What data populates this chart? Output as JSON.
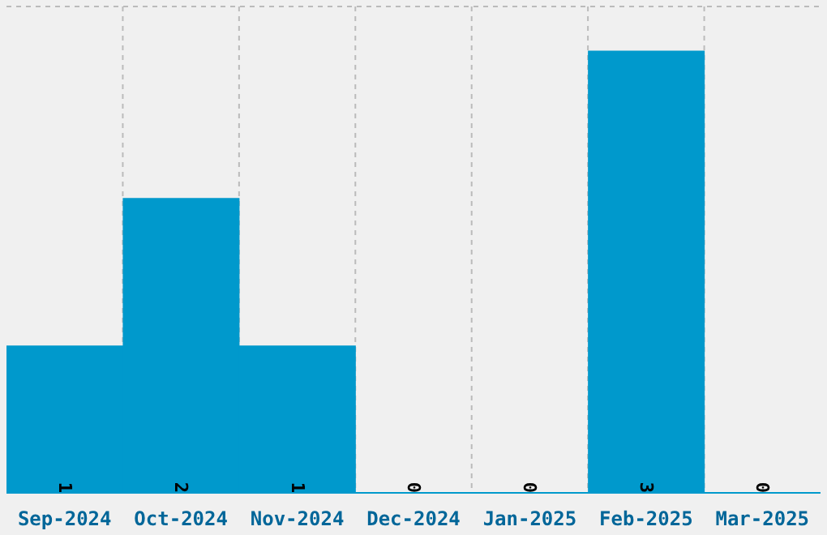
{
  "chart_data": {
    "type": "bar",
    "categories": [
      "Sep-2024",
      "Oct-2024",
      "Nov-2024",
      "Dec-2024",
      "Jan-2025",
      "Feb-2025",
      "Mar-2025"
    ],
    "values": [
      1,
      2,
      1,
      0,
      0,
      3,
      0
    ],
    "color": "#0099cc",
    "ylim": [
      0,
      3.3
    ],
    "grid": true,
    "data_labels": true,
    "tick_labels": "x"
  }
}
